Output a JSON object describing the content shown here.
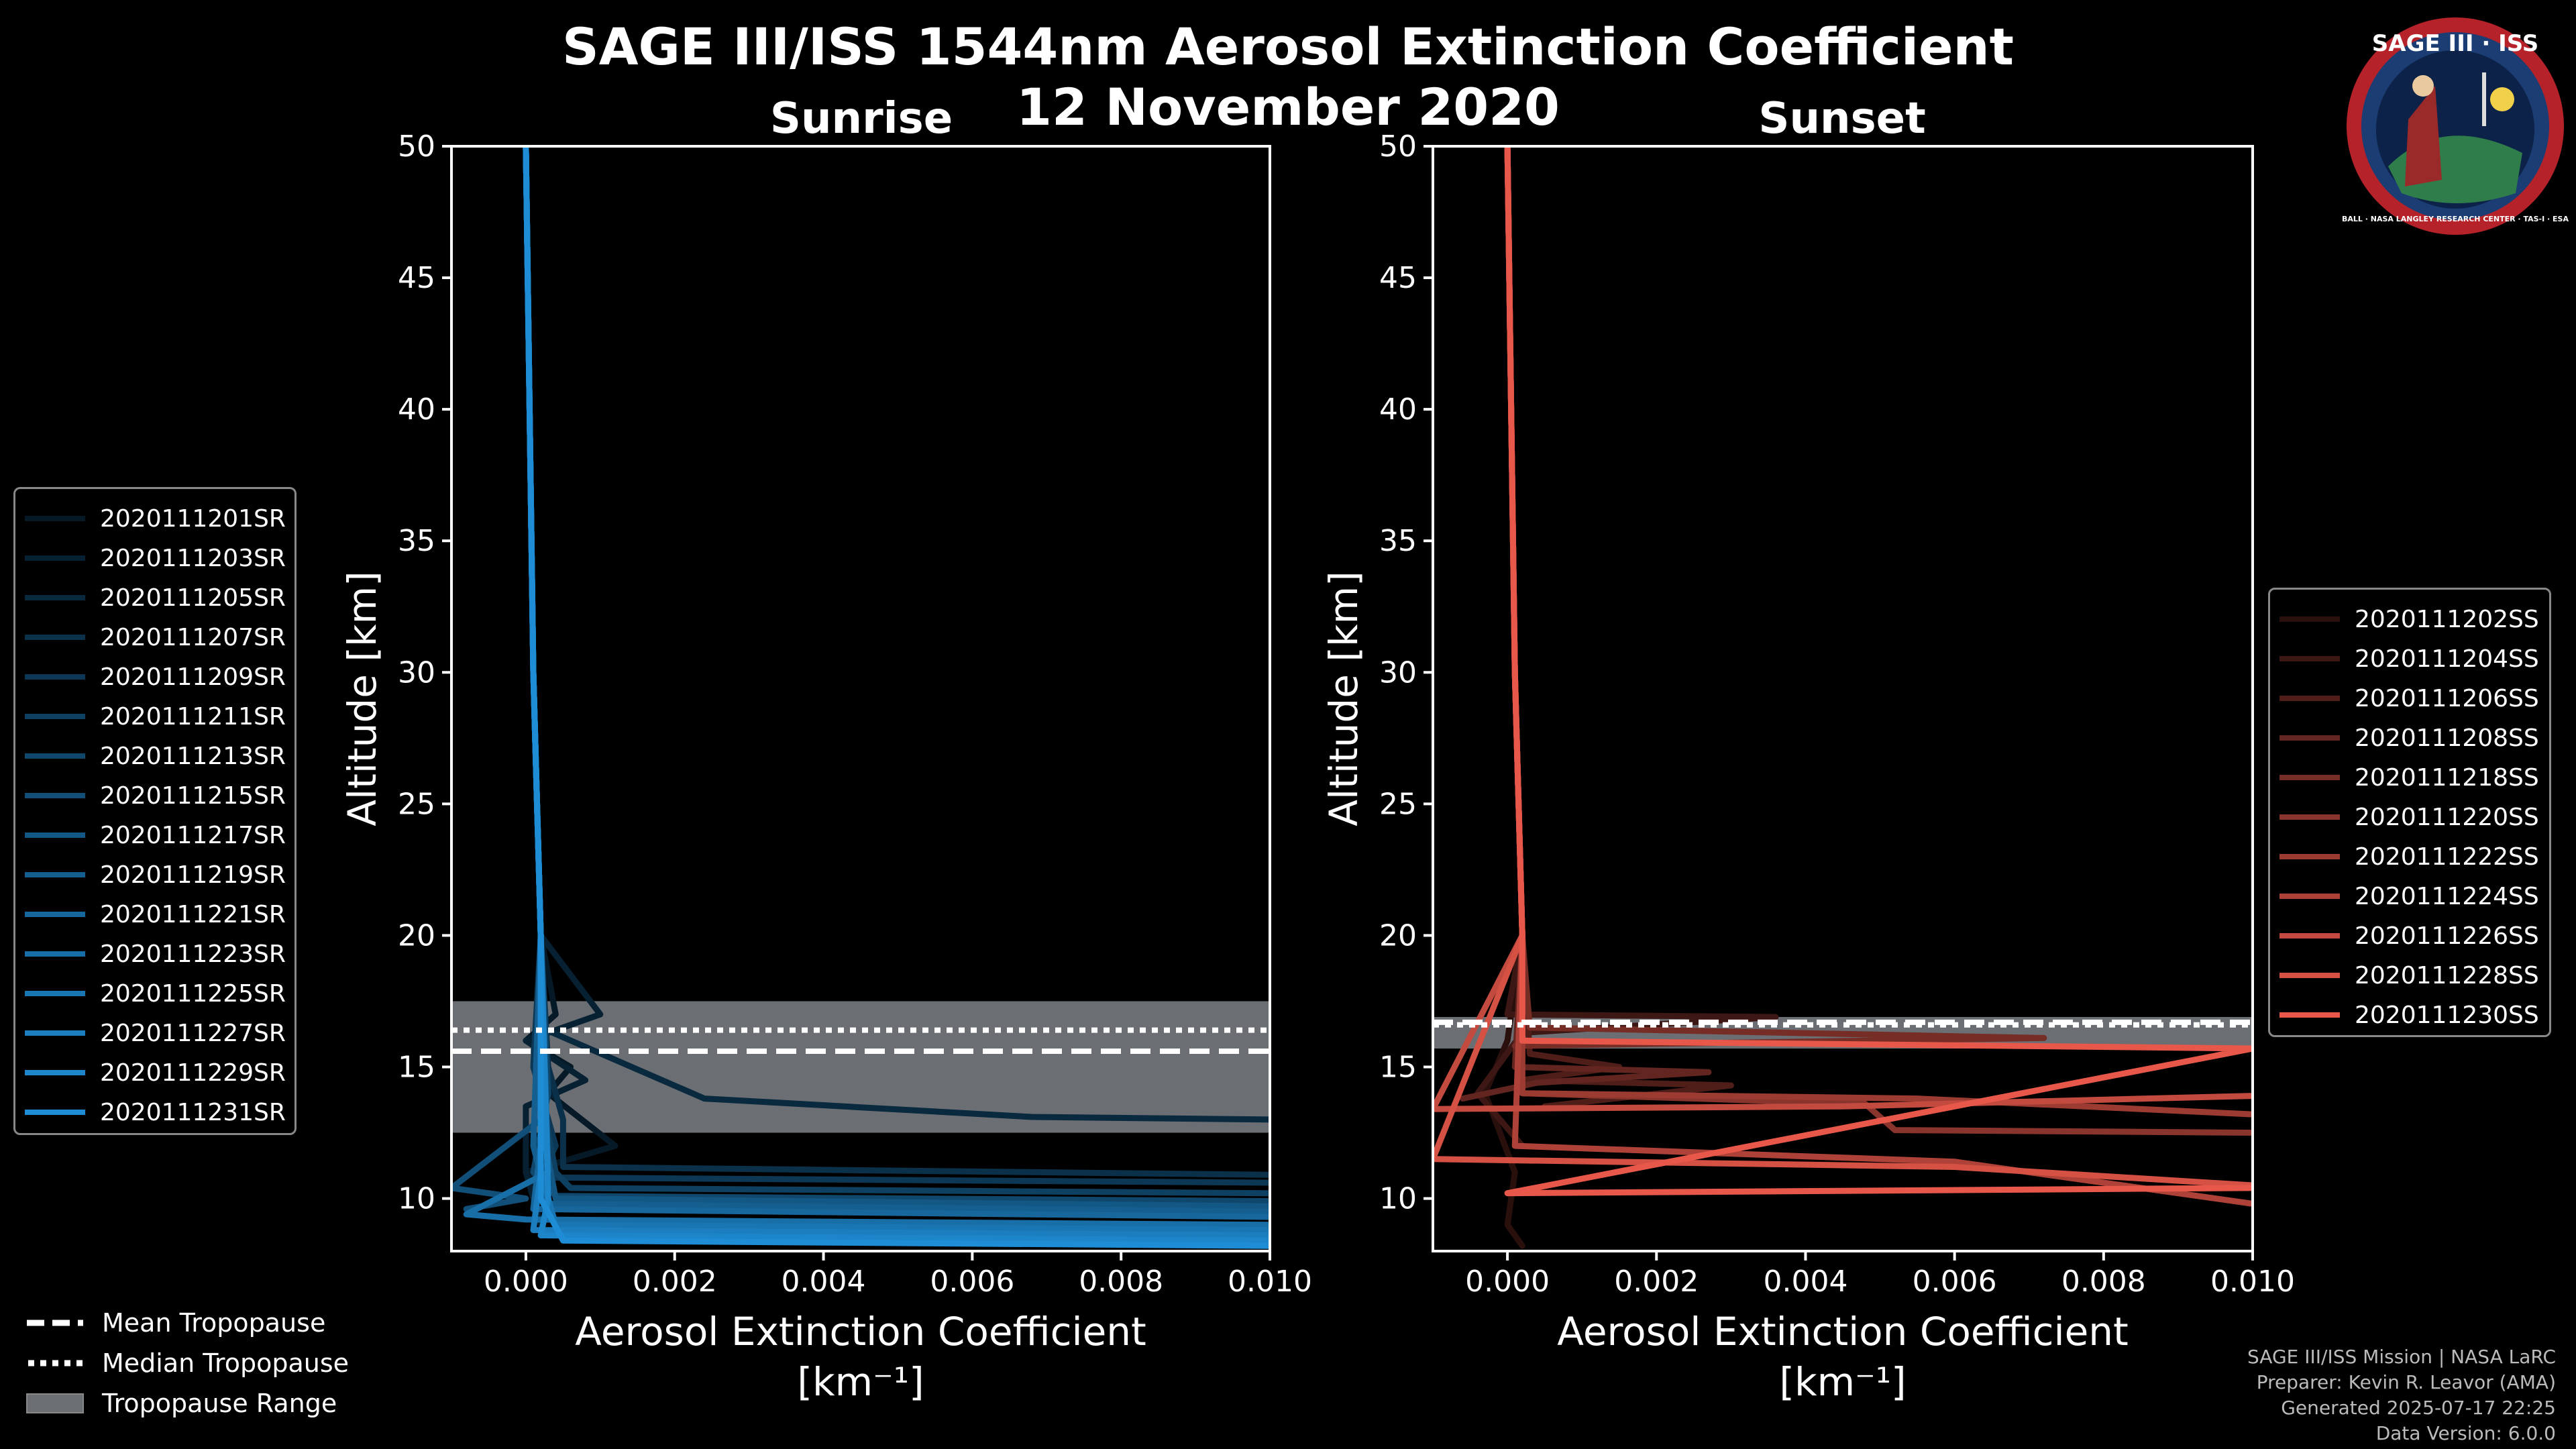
{
  "title": {
    "line1": "SAGE III/ISS 1544nm Aerosol Extinction Coefficient",
    "line2": "12 November 2020"
  },
  "panels": {
    "left": {
      "subtitle": "Sunrise"
    },
    "right": {
      "subtitle": "Sunset"
    }
  },
  "logo": {
    "text": "SAGE III · ISS",
    "ring_text": "BALL · NASA LANGLEY RESEARCH CENTER · TAS-I · ESA"
  },
  "bottom_legend": {
    "mean": "Mean Tropopause",
    "median": "Median Tropopause",
    "range": "Tropopause Range"
  },
  "credits": {
    "line1": "SAGE III/ISS Mission | NASA LaRC",
    "line2": "Preparer: Kevin R. Leavor (AMA)",
    "line3": "Generated 2025-07-17 22:25",
    "line4": "Data Version: 6.0.0"
  },
  "chart_data": [
    {
      "type": "line",
      "panel": "Sunrise",
      "xlabel": "Aerosol Extinction Coefficient",
      "xunit": "[km⁻¹]",
      "ylabel": "Altitude [km]",
      "xlim": [
        -0.001,
        0.01
      ],
      "ylim": [
        8,
        50
      ],
      "xticks": [
        0.0,
        0.002,
        0.004,
        0.006,
        0.008,
        0.01
      ],
      "xtick_labels": [
        "0.000",
        "0.002",
        "0.004",
        "0.006",
        "0.008",
        "0.010"
      ],
      "yticks": [
        10,
        15,
        20,
        25,
        30,
        35,
        40,
        45,
        50
      ],
      "tropopause": {
        "mean": 15.6,
        "median": 16.4,
        "range": [
          12.5,
          17.5
        ]
      },
      "colors": {
        "series": "#1f8dd6",
        "tropo_range": "#6b6e73"
      },
      "legend": [
        "2020111201SR",
        "2020111203SR",
        "2020111205SR",
        "2020111207SR",
        "2020111209SR",
        "2020111211SR",
        "2020111213SR",
        "2020111215SR",
        "2020111217SR",
        "2020111219SR",
        "2020111221SR",
        "2020111223SR",
        "2020111225SR",
        "2020111227SR",
        "2020111229SR",
        "2020111231SR"
      ],
      "series": [
        {
          "name": "2020111201SR",
          "points": [
            [
              0.0,
              50
            ],
            [
              0.0001,
              30
            ],
            [
              0.0002,
              20
            ],
            [
              0.0004,
              17
            ],
            [
              0.0,
              16
            ],
            [
              0.0006,
              15
            ],
            [
              0.0003,
              14
            ],
            [
              0.0012,
              12
            ],
            [
              0.0,
              11
            ],
            [
              0.0003,
              10
            ]
          ]
        },
        {
          "name": "2020111203SR",
          "points": [
            [
              0.0,
              50
            ],
            [
              0.0001,
              30
            ],
            [
              0.0002,
              20
            ],
            [
              0.001,
              17
            ],
            [
              0.0,
              16
            ],
            [
              0.0008,
              14.5
            ],
            [
              0.0,
              13.5
            ],
            [
              0.0,
              11
            ],
            [
              0.0002,
              9
            ]
          ]
        },
        {
          "name": "2020111205SR",
          "points": [
            [
              0.0,
              50
            ],
            [
              0.0001,
              30
            ],
            [
              0.0002,
              20
            ],
            [
              0.0002,
              16.5
            ],
            [
              0.0024,
              13.8
            ],
            [
              0.0068,
              13.1
            ],
            [
              0.01,
              13.0
            ]
          ]
        },
        {
          "name": "2020111207SR",
          "points": [
            [
              0.0,
              50
            ],
            [
              0.0001,
              30
            ],
            [
              0.0002,
              20
            ],
            [
              0.0003,
              15
            ],
            [
              0.0005,
              13
            ],
            [
              0.0005,
              11.2
            ],
            [
              0.01,
              10.9
            ]
          ]
        },
        {
          "name": "2020111209SR",
          "points": [
            [
              0.0,
              50
            ],
            [
              0.0001,
              30
            ],
            [
              0.0002,
              20
            ],
            [
              0.0001,
              15
            ],
            [
              0.0004,
              12
            ],
            [
              0.0002,
              10.8
            ],
            [
              0.01,
              10.6
            ]
          ]
        },
        {
          "name": "2020111211SR",
          "points": [
            [
              0.0,
              50
            ],
            [
              0.0001,
              30
            ],
            [
              0.0002,
              20
            ],
            [
              0.0002,
              14
            ],
            [
              0.0004,
              11
            ],
            [
              0.0006,
              10.4
            ],
            [
              0.01,
              10.2
            ]
          ]
        },
        {
          "name": "2020111213SR",
          "points": [
            [
              0.0,
              50
            ],
            [
              0.0001,
              30
            ],
            [
              0.0002,
              20
            ],
            [
              0.0003,
              14
            ],
            [
              0.0001,
              11
            ],
            [
              0.0004,
              10.1
            ],
            [
              0.01,
              9.9
            ]
          ]
        },
        {
          "name": "2020111215SR",
          "points": [
            [
              0.0,
              50
            ],
            [
              0.0001,
              30
            ],
            [
              0.0002,
              20
            ],
            [
              0.0002,
              13
            ],
            [
              -0.001,
              10.4
            ],
            [
              0.0,
              10
            ],
            [
              -0.0008,
              9.6
            ]
          ]
        },
        {
          "name": "2020111217SR",
          "points": [
            [
              0.0,
              50
            ],
            [
              0.0001,
              30
            ],
            [
              0.0002,
              20
            ],
            [
              0.0002,
              13
            ],
            [
              0.0004,
              10
            ],
            [
              0.01,
              9.7
            ]
          ]
        },
        {
          "name": "2020111219SR",
          "points": [
            [
              0.0,
              50
            ],
            [
              0.0001,
              30
            ],
            [
              0.0002,
              20
            ],
            [
              0.0001,
              12
            ],
            [
              0.0003,
              9.8
            ],
            [
              0.01,
              9.5
            ]
          ]
        },
        {
          "name": "2020111221SR",
          "points": [
            [
              0.0,
              50
            ],
            [
              0.0001,
              30
            ],
            [
              0.0002,
              20
            ],
            [
              0.0002,
              12
            ],
            [
              0.0001,
              9.6
            ],
            [
              0.01,
              9.3
            ]
          ]
        },
        {
          "name": "2020111223SR",
          "points": [
            [
              0.0,
              50
            ],
            [
              0.0001,
              30
            ],
            [
              0.0002,
              20
            ],
            [
              0.0003,
              11
            ],
            [
              -0.0008,
              9.4
            ],
            [
              0.0,
              9.2
            ],
            [
              0.01,
              9.0
            ]
          ]
        },
        {
          "name": "2020111225SR",
          "points": [
            [
              0.0,
              50
            ],
            [
              0.0001,
              30
            ],
            [
              0.0002,
              20
            ],
            [
              0.0002,
              11
            ],
            [
              0.0004,
              9.0
            ],
            [
              0.01,
              8.8
            ]
          ]
        },
        {
          "name": "2020111227SR",
          "points": [
            [
              0.0,
              50
            ],
            [
              0.0001,
              30
            ],
            [
              0.0002,
              20
            ],
            [
              0.0002,
              11
            ],
            [
              0.0001,
              8.8
            ],
            [
              0.01,
              8.6
            ]
          ]
        },
        {
          "name": "2020111229SR",
          "points": [
            [
              0.0,
              50
            ],
            [
              0.0001,
              30
            ],
            [
              0.0002,
              20
            ],
            [
              0.0003,
              10
            ],
            [
              0.0002,
              8.6
            ],
            [
              0.01,
              8.4
            ]
          ]
        },
        {
          "name": "2020111231SR",
          "points": [
            [
              0.0,
              50
            ],
            [
              0.0001,
              30
            ],
            [
              0.0002,
              20
            ],
            [
              0.0002,
              10
            ],
            [
              0.0005,
              8.4
            ],
            [
              0.01,
              8.2
            ]
          ]
        }
      ]
    },
    {
      "type": "line",
      "panel": "Sunset",
      "xlabel": "Aerosol Extinction Coefficient",
      "xunit": "[km⁻¹]",
      "ylabel": "Altitude [km]",
      "xlim": [
        -0.001,
        0.01
      ],
      "ylim": [
        8,
        50
      ],
      "xticks": [
        0.0,
        0.002,
        0.004,
        0.006,
        0.008,
        0.01
      ],
      "xtick_labels": [
        "0.000",
        "0.002",
        "0.004",
        "0.006",
        "0.008",
        "0.010"
      ],
      "yticks": [
        10,
        15,
        20,
        25,
        30,
        35,
        40,
        45,
        50
      ],
      "tropopause": {
        "mean": 16.7,
        "median": 16.6,
        "range": [
          15.7,
          16.9
        ]
      },
      "colors": {
        "series": "#e8584a",
        "tropo_range": "#6b6e73"
      },
      "legend": [
        "2020111202SS",
        "2020111204SS",
        "2020111206SS",
        "2020111208SS",
        "2020111218SS",
        "2020111220SS",
        "2020111222SS",
        "2020111224SS",
        "2020111226SS",
        "2020111228SS",
        "2020111230SS"
      ],
      "series": [
        {
          "name": "2020111202SS",
          "points": [
            [
              0.0,
              50
            ],
            [
              0.0001,
              30
            ],
            [
              0.0002,
              20
            ],
            [
              0.0,
              16
            ],
            [
              -0.0003,
              14
            ],
            [
              0.0001,
              11
            ],
            [
              0.0,
              9
            ],
            [
              0.0002,
              8.2
            ]
          ]
        },
        {
          "name": "2020111204SS",
          "points": [
            [
              0.0,
              50
            ],
            [
              0.0001,
              30
            ],
            [
              0.0002,
              20
            ],
            [
              0.0,
              17
            ],
            [
              0.0036,
              16.9
            ],
            [
              0.0002,
              16.3
            ],
            [
              -0.0004,
              14
            ],
            [
              0.0002,
              12
            ]
          ]
        },
        {
          "name": "2020111206SS",
          "points": [
            [
              0.0,
              50
            ],
            [
              0.0001,
              30
            ],
            [
              0.0002,
              20
            ],
            [
              0.0003,
              15.5
            ],
            [
              0.0015,
              15
            ],
            [
              0.0002,
              14.5
            ],
            [
              0.003,
              14.3
            ],
            [
              0.0005,
              13.5
            ]
          ]
        },
        {
          "name": "2020111208SS",
          "points": [
            [
              0.0,
              50
            ],
            [
              0.0001,
              30
            ],
            [
              0.0002,
              20
            ],
            [
              0.0001,
              15
            ],
            [
              0.0027,
              14.8
            ],
            [
              0.0004,
              14.4
            ],
            [
              -0.0006,
              13.8
            ]
          ]
        },
        {
          "name": "2020111218SS",
          "points": [
            [
              0.0,
              50
            ],
            [
              0.0001,
              30
            ],
            [
              0.0002,
              20
            ],
            [
              0.0003,
              16.5
            ],
            [
              0.0072,
              16.1
            ],
            [
              0.0001,
              15.8
            ]
          ]
        },
        {
          "name": "2020111220SS",
          "points": [
            [
              0.0,
              50
            ],
            [
              0.0001,
              30
            ],
            [
              0.0002,
              20
            ],
            [
              0.0002,
              14
            ],
            [
              0.0048,
              13.6
            ],
            [
              0.0052,
              12.6
            ],
            [
              0.01,
              12.5
            ]
          ]
        },
        {
          "name": "2020111222SS",
          "points": [
            [
              0.0,
              50
            ],
            [
              0.0001,
              30
            ],
            [
              0.0002,
              20
            ],
            [
              0.0002,
              14
            ],
            [
              0.0055,
              13.8
            ],
            [
              0.01,
              13.2
            ]
          ]
        },
        {
          "name": "2020111224SS",
          "points": [
            [
              0.0,
              50
            ],
            [
              0.0001,
              30
            ],
            [
              0.0002,
              20
            ],
            [
              0.0001,
              12
            ],
            [
              0.006,
              11.4
            ],
            [
              0.01,
              9.8
            ]
          ]
        },
        {
          "name": "2020111226SS",
          "points": [
            [
              0.0,
              50
            ],
            [
              0.0001,
              30
            ],
            [
              0.0002,
              20
            ],
            [
              -0.001,
              13.4
            ],
            [
              0.0045,
              13.5
            ],
            [
              0.01,
              13.9
            ]
          ]
        },
        {
          "name": "2020111228SS",
          "points": [
            [
              0.0,
              50
            ],
            [
              0.0001,
              30
            ],
            [
              0.0002,
              20
            ],
            [
              -0.001,
              11.5
            ],
            [
              0.006,
              11.2
            ],
            [
              0.01,
              10.5
            ]
          ]
        },
        {
          "name": "2020111230SS",
          "points": [
            [
              0.0,
              50
            ],
            [
              0.0001,
              30
            ],
            [
              0.0002,
              20
            ],
            [
              0.0002,
              16
            ],
            [
              0.01,
              15.7
            ],
            [
              0.0,
              10.2
            ],
            [
              0.01,
              10.4
            ]
          ]
        }
      ]
    }
  ]
}
